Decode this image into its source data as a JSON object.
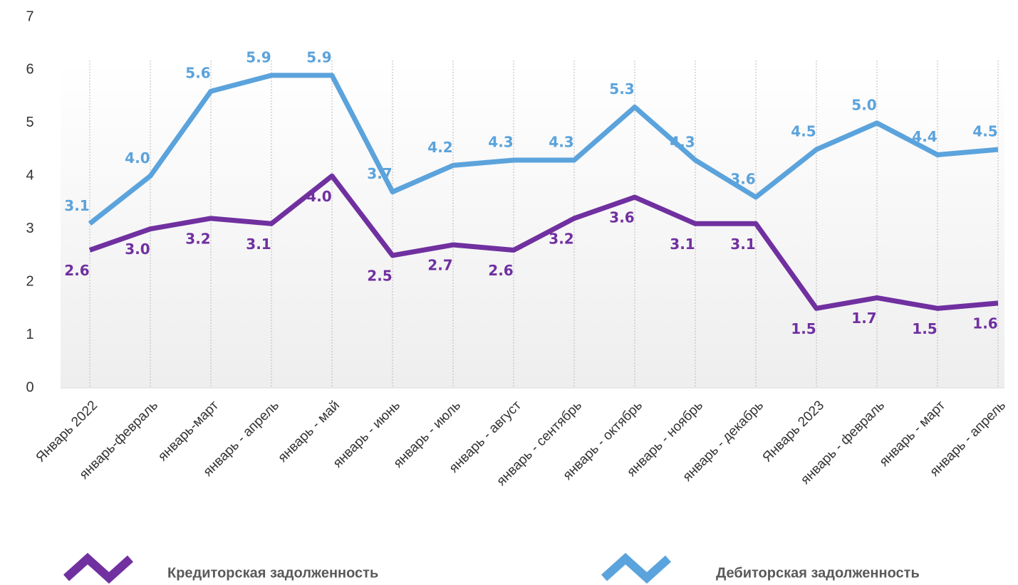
{
  "chart_data": {
    "type": "line",
    "categories": [
      "Январь 2022",
      "январь-февраль",
      "январь-март",
      "январь - апрель",
      "январь - май",
      "январь - июнь",
      "январь - июль",
      "январь - август",
      "январь - сентябрь",
      "январь - октябрь",
      "январь - ноябрь",
      "январь - декабрь",
      "Январь 2023",
      "январь - февраль",
      "январь - март",
      "январь - апрель"
    ],
    "series": [
      {
        "name": "Кредиторская задолженность",
        "color": "#7030a0",
        "values": [
          2.6,
          3.0,
          3.2,
          3.1,
          4.0,
          2.5,
          2.7,
          2.6,
          3.2,
          3.6,
          3.1,
          3.1,
          1.5,
          1.7,
          1.5,
          1.6
        ],
        "value_labels": [
          "2.6",
          "3.0",
          "3.2",
          "3.1",
          "4.0",
          "2.5",
          "2.7",
          "2.6",
          "3.2",
          "3.6",
          "3.1",
          "3.1",
          "1.5",
          "1.7",
          "1.5",
          "1.6"
        ]
      },
      {
        "name": "Дебиторская задолженность",
        "color": "#5ba3dc",
        "values": [
          3.1,
          4.0,
          5.6,
          5.9,
          5.9,
          3.7,
          4.2,
          4.3,
          4.3,
          5.3,
          4.3,
          3.6,
          4.5,
          5.0,
          4.4,
          4.5
        ],
        "value_labels": [
          "3.1",
          "4.0",
          "5.6",
          "5.9",
          "5.9",
          "3.7",
          "4.2",
          "4.3",
          "4.3",
          "5.3",
          "4.3",
          "3.6",
          "4.5",
          "5.0",
          "4.4",
          "4.5"
        ]
      }
    ],
    "ylim": [
      0,
      7
    ],
    "yticks": [
      0,
      1,
      2,
      3,
      4,
      5,
      6,
      7
    ],
    "grid": true
  }
}
